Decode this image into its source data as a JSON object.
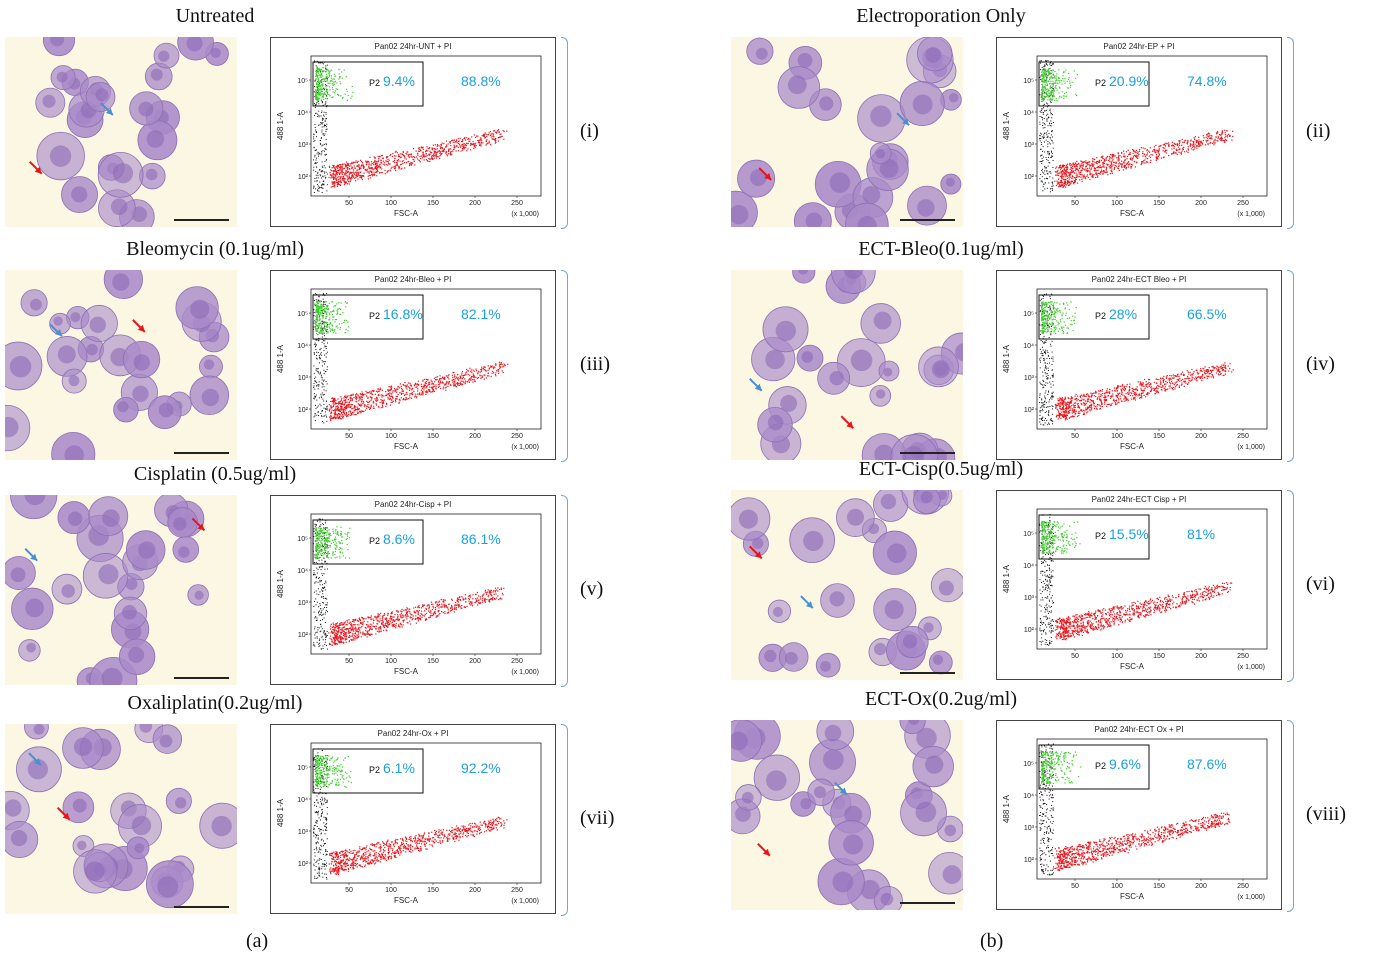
{
  "panels": [
    {
      "title": "Untreated",
      "plot_title": "Pan02 24hr-UNT + PI",
      "gate": "P2",
      "pct_dead": "9.4%",
      "pct_live": "88.8%",
      "roman": "(i)"
    },
    {
      "title": "Electroporation Only",
      "plot_title": "Pan02 24hr-EP + PI",
      "gate": "P2",
      "pct_dead": "20.9%",
      "pct_live": "74.8%",
      "roman": "(ii)"
    },
    {
      "title": "Bleomycin (0.1ug/ml)",
      "plot_title": "Pan02 24hr-Bleo + PI",
      "gate": "P2",
      "pct_dead": "16.8%",
      "pct_live": "82.1%",
      "roman": "(iii)"
    },
    {
      "title": "ECT-Bleo(0.1ug/ml)",
      "plot_title": "Pan02 24hr-ECT Bleo + PI",
      "gate": "P2",
      "pct_dead": "28%",
      "pct_live": "66.5%",
      "roman": "(iv)"
    },
    {
      "title": "Cisplatin  (0.5ug/ml)",
      "plot_title": "Pan02 24hr-Cisp + PI",
      "gate": "P2",
      "pct_dead": "8.6%",
      "pct_live": "86.1%",
      "roman": "(v)"
    },
    {
      "title": "ECT-Cisp(0.5ug/ml)",
      "plot_title": "Pan02 24hr-ECT Cisp + PI",
      "gate": "P2",
      "pct_dead": "15.5%",
      "pct_live": "81%",
      "roman": "(vi)"
    },
    {
      "title": "Oxaliplatin(0.2ug/ml)",
      "plot_title": "Pan02 24hr-Ox + PI",
      "gate": "P2",
      "pct_dead": "6.1%",
      "pct_live": "92.2%",
      "roman": "(vii)"
    },
    {
      "title": "ECT-Ox(0.2ug/ml)",
      "plot_title": "Pan02 24hr-ECT Ox + PI",
      "gate": "P2",
      "pct_dead": "9.6%",
      "pct_live": "87.6%",
      "roman": "(viii)"
    }
  ],
  "axis": {
    "x_label": "FSC-A",
    "y_label": "488 1-A",
    "x_scale": "(x 1,000)",
    "x_ticks": [
      "50",
      "100",
      "150",
      "200",
      "250"
    ],
    "y_ticks": [
      "10²",
      "10³",
      "10⁴",
      "10⁵"
    ]
  },
  "sublabels": {
    "a": "(a)",
    "b": "(b)"
  },
  "colors": {
    "live": "#e8141b",
    "dead": "#3ccf2a",
    "debris": "#111111",
    "pct": "#1aa0e0",
    "bracket": "#7aa4d6",
    "cell": "#a98ac9"
  }
}
